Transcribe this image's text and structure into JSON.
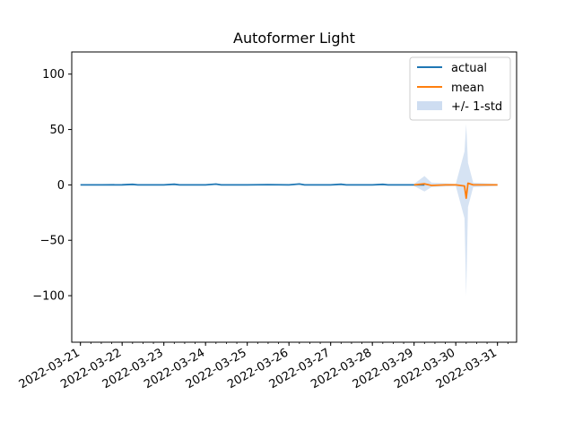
{
  "chart_data": {
    "type": "line",
    "title": "Autoformer Light",
    "xlabel": "",
    "ylabel": "",
    "x_ticks": [
      "2022-03-21",
      "2022-03-22",
      "2022-03-23",
      "2022-03-24",
      "2022-03-25",
      "2022-03-26",
      "2022-03-27",
      "2022-03-28",
      "2022-03-29",
      "2022-03-30",
      "2022-03-31"
    ],
    "y_ticks": [
      100,
      50,
      0,
      -50,
      -100
    ],
    "y_tick_labels": [
      "100",
      "50",
      "0",
      "−50",
      "−100"
    ],
    "xlim": [
      "2022-03-20T19:00",
      "2022-03-31T11:00"
    ],
    "ylim": [
      -142,
      120
    ],
    "grid": false,
    "legend_position": "top-right",
    "series": [
      {
        "name": "actual",
        "color": "#1f77b4",
        "points": [
          [
            "2022-03-21T00:00",
            0.0
          ],
          [
            "2022-03-21T12:00",
            0.0
          ],
          [
            "2022-03-22T00:00",
            0.1
          ],
          [
            "2022-03-22T06:00",
            0.5
          ],
          [
            "2022-03-22T09:00",
            0.0
          ],
          [
            "2022-03-23T00:00",
            0.0
          ],
          [
            "2022-03-23T06:00",
            0.6
          ],
          [
            "2022-03-23T09:00",
            0.0
          ],
          [
            "2022-03-24T00:00",
            0.0
          ],
          [
            "2022-03-24T06:00",
            0.7
          ],
          [
            "2022-03-24T09:00",
            0.0
          ],
          [
            "2022-03-25T00:00",
            0.0
          ],
          [
            "2022-03-25T12:00",
            0.2
          ],
          [
            "2022-03-26T00:00",
            0.0
          ],
          [
            "2022-03-26T06:00",
            0.8
          ],
          [
            "2022-03-26T09:00",
            0.0
          ],
          [
            "2022-03-27T00:00",
            0.0
          ],
          [
            "2022-03-27T06:00",
            0.6
          ],
          [
            "2022-03-27T09:00",
            0.0
          ],
          [
            "2022-03-28T00:00",
            0.0
          ],
          [
            "2022-03-28T06:00",
            0.5
          ],
          [
            "2022-03-28T09:00",
            0.0
          ],
          [
            "2022-03-29T00:00",
            0.0
          ],
          [
            "2022-03-29T06:00",
            0.1
          ]
        ]
      },
      {
        "name": "mean",
        "color": "#ff7f0e",
        "points": [
          [
            "2022-03-29T00:00",
            0.0
          ],
          [
            "2022-03-29T06:00",
            1.0
          ],
          [
            "2022-03-29T10:00",
            -0.5
          ],
          [
            "2022-03-29T18:00",
            0.0
          ],
          [
            "2022-03-30T00:00",
            0.0
          ],
          [
            "2022-03-30T05:00",
            -1.0
          ],
          [
            "2022-03-30T06:00",
            -12.0
          ],
          [
            "2022-03-30T07:00",
            1.5
          ],
          [
            "2022-03-30T10:00",
            0.0
          ],
          [
            "2022-03-30T18:00",
            0.0
          ],
          [
            "2022-03-31T00:00",
            0.0
          ]
        ]
      }
    ],
    "band": {
      "name": "+/- 1-std",
      "color": "#aec7e8",
      "points": [
        [
          "2022-03-29T00:00",
          -1.0,
          1.0
        ],
        [
          "2022-03-29T06:00",
          -6.0,
          8.0
        ],
        [
          "2022-03-29T10:00",
          -2.0,
          2.0
        ],
        [
          "2022-03-30T00:00",
          -1.0,
          1.0
        ],
        [
          "2022-03-30T05:00",
          -30.0,
          30.0
        ],
        [
          "2022-03-30T06:00",
          -100.0,
          55.0
        ],
        [
          "2022-03-30T07:00",
          -20.0,
          20.0
        ],
        [
          "2022-03-30T10:00",
          -2.0,
          2.0
        ],
        [
          "2022-03-31T00:00",
          -1.0,
          1.0
        ]
      ]
    }
  }
}
